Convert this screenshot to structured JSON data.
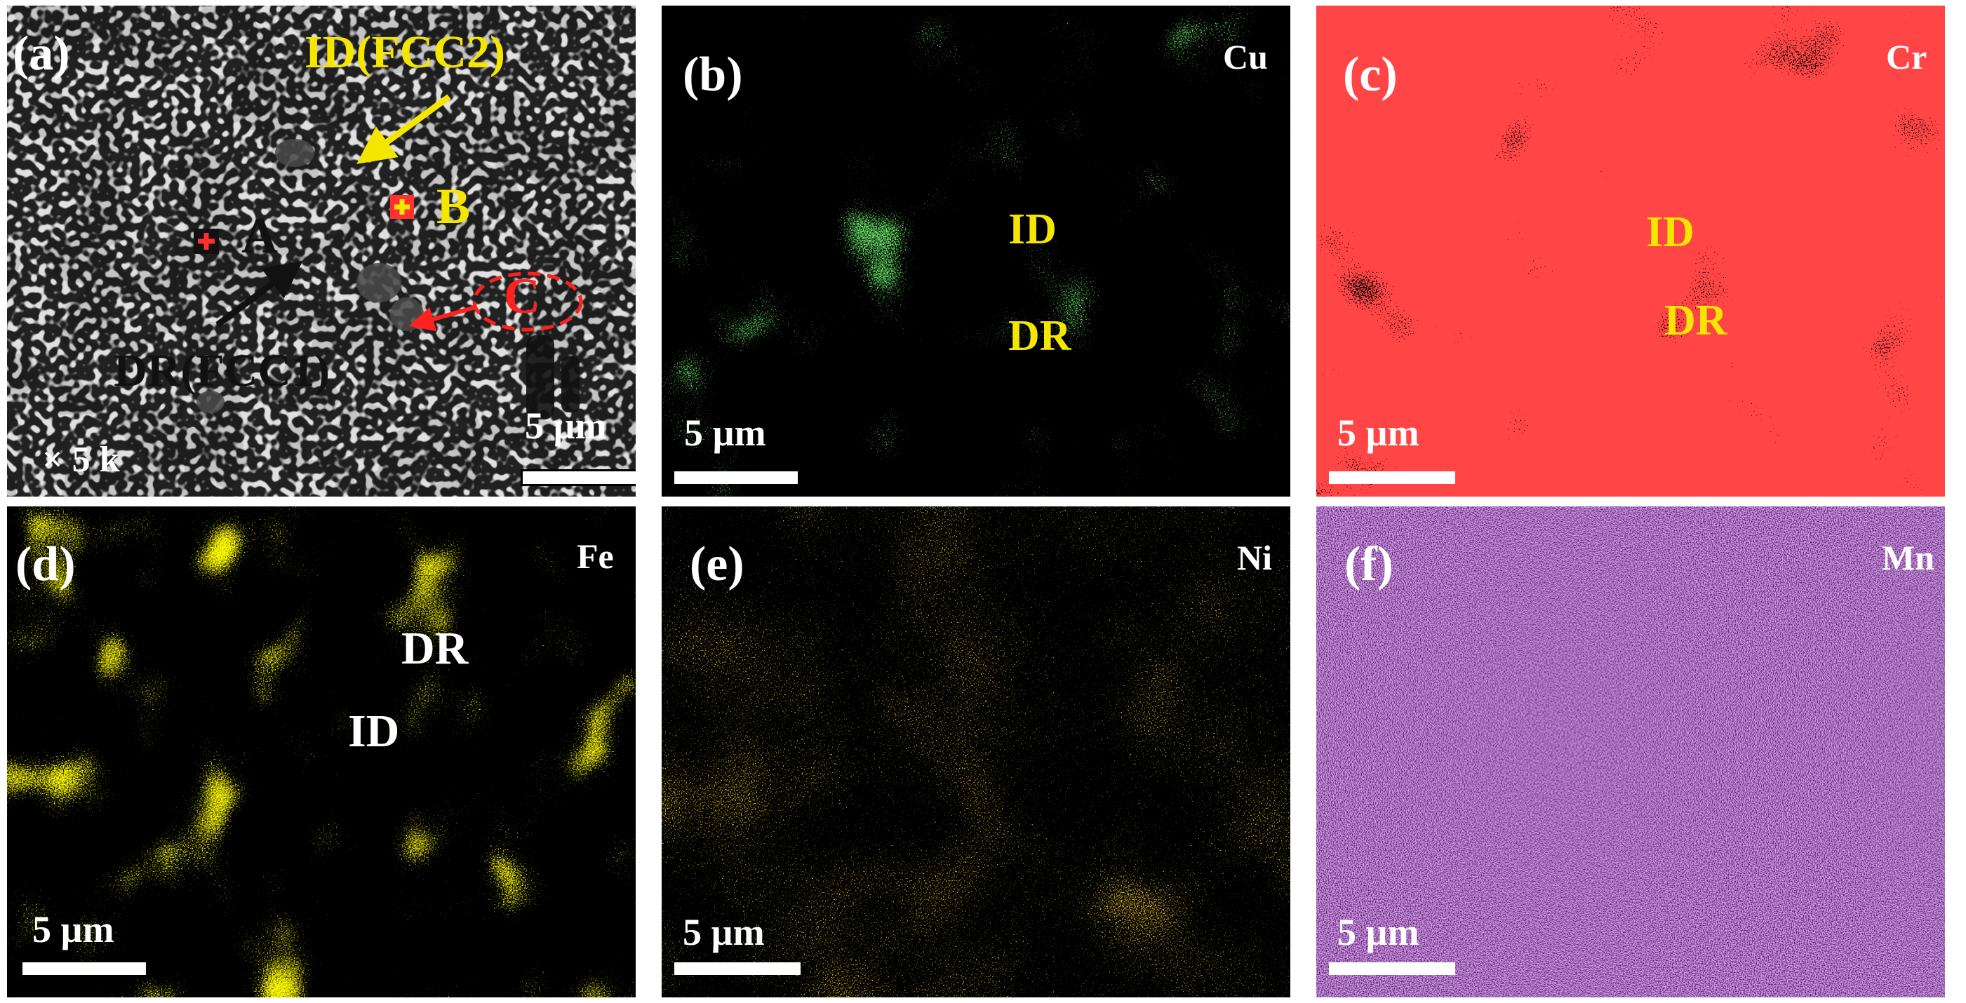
{
  "panels": {
    "a": {
      "letter": "(a)",
      "labels": {
        "id": "ID(FCC2)",
        "dr": "DR(FCC1)",
        "a": "A",
        "b": "B",
        "c": "C"
      },
      "magnification": "× 5 k",
      "scale_bar": "5 µm"
    },
    "b": {
      "letter": "(b)",
      "element": "Cu",
      "labels": [
        "ID",
        "DR"
      ],
      "scale_bar": "5 µm",
      "color": "#22dd22"
    },
    "c": {
      "letter": "(c)",
      "element": "Cr",
      "labels": [
        "ID",
        "DR"
      ],
      "scale_bar": "5 µm",
      "color": "#ff1010"
    },
    "d": {
      "letter": "(d)",
      "element": "Fe",
      "labels": [
        "DR",
        "ID"
      ],
      "scale_bar": "5 µm",
      "color": "#f2ee00"
    },
    "e": {
      "letter": "(e)",
      "element": "Ni",
      "scale_bar": "5 µm",
      "color": "#e8a000"
    },
    "f": {
      "letter": "(f)",
      "element": "Mn",
      "scale_bar": "5 µm",
      "color": "#b24fe0"
    }
  },
  "colors": {
    "label_yellow": "#f5e600",
    "label_white": "#ffffff",
    "label_red": "#ff2020",
    "label_black": "#111111"
  }
}
